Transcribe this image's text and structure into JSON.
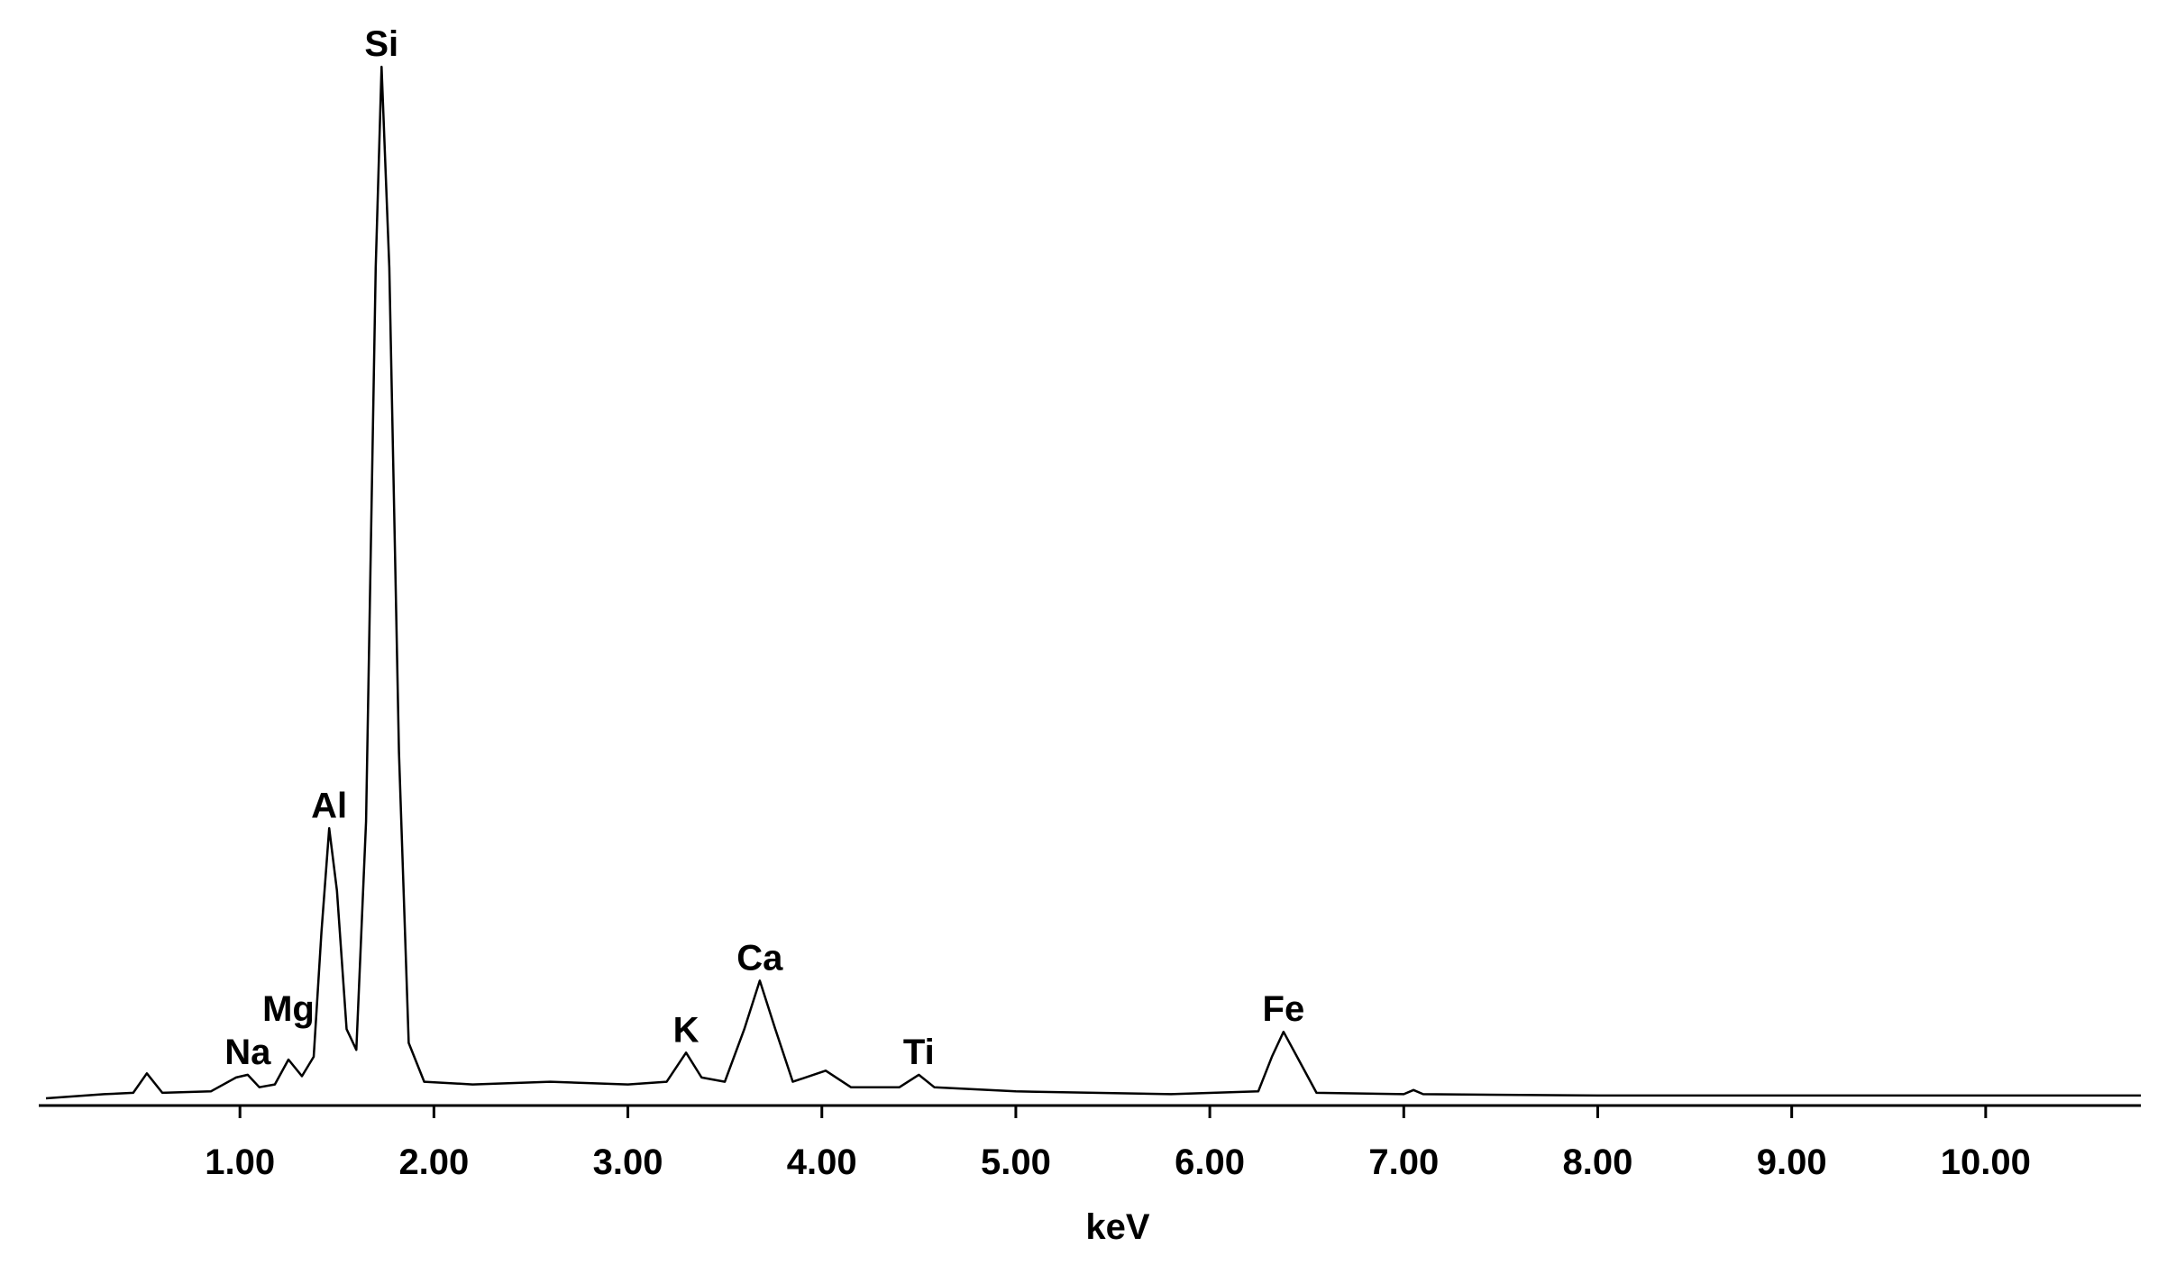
{
  "chart_data": {
    "type": "line",
    "xlabel": "keV",
    "x": [
      0.0,
      0.3,
      0.45,
      0.52,
      0.6,
      0.85,
      0.98,
      1.04,
      1.1,
      1.18,
      1.25,
      1.32,
      1.38,
      1.42,
      1.46,
      1.5,
      1.55,
      1.6,
      1.65,
      1.7,
      1.73,
      1.77,
      1.82,
      1.87,
      1.95,
      2.2,
      2.6,
      3.0,
      3.2,
      3.3,
      3.38,
      3.5,
      3.6,
      3.68,
      3.76,
      3.85,
      4.02,
      4.15,
      4.4,
      4.5,
      4.58,
      5.0,
      5.8,
      6.25,
      6.32,
      6.38,
      6.45,
      6.55,
      7.0,
      7.05,
      7.1,
      8.0,
      9.0,
      10.0,
      10.8
    ],
    "values": [
      0,
      3,
      4,
      18,
      4,
      5,
      15,
      17,
      8,
      10,
      28,
      16,
      30,
      120,
      195,
      150,
      50,
      35,
      200,
      600,
      745,
      600,
      250,
      40,
      12,
      10,
      12,
      10,
      12,
      33,
      15,
      12,
      50,
      85,
      50,
      12,
      20,
      8,
      8,
      17,
      8,
      5,
      3,
      5,
      30,
      48,
      30,
      4,
      3,
      6,
      3,
      2,
      2,
      2,
      2
    ],
    "color": "#000000",
    "xlim": [
      0,
      10.8
    ],
    "ylim": [
      0,
      760
    ],
    "xticks": [
      {
        "value": 1,
        "label": "1.00"
      },
      {
        "value": 2,
        "label": "2.00"
      },
      {
        "value": 3,
        "label": "3.00"
      },
      {
        "value": 4,
        "label": "4.00"
      },
      {
        "value": 5,
        "label": "5.00"
      },
      {
        "value": 6,
        "label": "6.00"
      },
      {
        "value": 7,
        "label": "7.00"
      },
      {
        "value": 8,
        "label": "8.00"
      },
      {
        "value": 9,
        "label": "9.00"
      },
      {
        "value": 10,
        "label": "10.00"
      }
    ],
    "annotations": [
      {
        "text": "Si",
        "x": 1.73,
        "y": 745
      },
      {
        "text": "Al",
        "x": 1.46,
        "y": 195
      },
      {
        "text": "Mg",
        "x": 1.25,
        "y": 48
      },
      {
        "text": "Na",
        "x": 1.04,
        "y": 17
      },
      {
        "text": "K",
        "x": 3.3,
        "y": 33
      },
      {
        "text": "Ca",
        "x": 3.68,
        "y": 85
      },
      {
        "text": "Ti",
        "x": 4.5,
        "y": 17
      },
      {
        "text": "Fe",
        "x": 6.38,
        "y": 48
      }
    ]
  }
}
